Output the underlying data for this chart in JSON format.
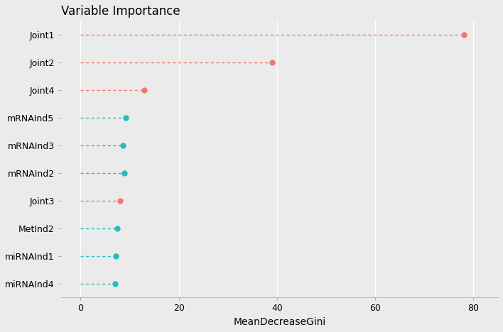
{
  "categories": [
    "Joint1",
    "Joint2",
    "Joint4",
    "mRNAInd5",
    "mRNAInd3",
    "mRNAInd2",
    "Joint3",
    "MetInd2",
    "miRNAInd1",
    "miRNAInd4"
  ],
  "values": [
    78.0,
    39.0,
    13.0,
    9.2,
    8.6,
    9.0,
    8.0,
    7.5,
    7.2,
    7.0
  ],
  "colors": [
    "#f07870",
    "#f07870",
    "#f07870",
    "#28bcbc",
    "#28bcbc",
    "#28bcbc",
    "#f07870",
    "#28bcbc",
    "#28bcbc",
    "#28bcbc"
  ],
  "title": "Variable Importance",
  "xlabel": "MeanDecreaseGini",
  "xlim": [
    -4,
    85
  ],
  "xticks": [
    0,
    20,
    40,
    60,
    80
  ],
  "background_color": "#ebebeb",
  "plot_bg_color": "#ebebeb",
  "grid_color": "#ffffff",
  "title_fontsize": 12,
  "label_fontsize": 10,
  "tick_fontsize": 9,
  "dot_size": 25,
  "line_width": 1.0
}
